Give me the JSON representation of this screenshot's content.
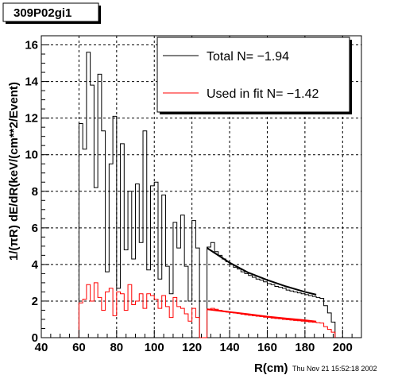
{
  "title_box": {
    "text": "309P02gi1"
  },
  "timestamp": "Thu Nov 21 15:52:18 2002",
  "legend": {
    "entries": [
      {
        "label": "Total N= −1.94",
        "color": "#000000"
      },
      {
        "label": "Used in fit N= −1.42",
        "color": "#ff0000"
      }
    ]
  },
  "chart_data": {
    "type": "line",
    "title": "309P02gi1",
    "xlabel": "R(cm)",
    "ylabel": "1/(πR) dE/dR(keV/(cm**2/Event)",
    "xlim": [
      40,
      210
    ],
    "ylim": [
      0,
      16.5
    ],
    "xticks": [
      40,
      60,
      80,
      100,
      120,
      140,
      160,
      180,
      200
    ],
    "yticks": [
      0,
      2,
      4,
      6,
      8,
      10,
      12,
      14,
      16
    ],
    "grid": true,
    "legend_position": "top-right",
    "series": [
      {
        "name": "Total N= −1.94",
        "color": "#000000",
        "style": "step",
        "bin_edges": [
          60,
          62,
          64,
          66,
          68,
          70,
          72,
          74,
          76,
          78,
          80,
          82,
          84,
          86,
          88,
          90,
          92,
          94,
          96,
          98,
          100,
          102,
          104,
          106,
          108,
          110,
          112,
          114,
          116,
          118,
          120,
          122,
          124,
          126,
          128,
          130,
          132,
          134,
          136,
          138,
          140,
          142,
          144,
          146,
          148,
          150,
          152,
          154,
          156,
          158,
          160,
          162,
          164,
          166,
          168,
          170,
          172,
          174,
          176,
          178,
          180,
          182,
          184,
          186,
          188,
          190,
          192,
          194,
          196
        ],
        "values": [
          11.7,
          10.3,
          15.6,
          13.8,
          8.2,
          14.4,
          11.3,
          3.6,
          9.5,
          12.1,
          2.7,
          10.6,
          4.8,
          8.0,
          4.3,
          8.4,
          5.2,
          11.3,
          3.7,
          8.3,
          8.5,
          3.2,
          7.8,
          3.9,
          2.4,
          6.3,
          4.9,
          6.7,
          3.9,
          2.0,
          6.4,
          4.9,
          0.0,
          0.0,
          4.95,
          5.2,
          4.7,
          4.5,
          4.3,
          4.15,
          4.0,
          3.85,
          3.75,
          3.6,
          3.5,
          3.4,
          3.3,
          3.2,
          3.15,
          3.05,
          2.95,
          2.9,
          2.8,
          2.75,
          2.7,
          2.6,
          2.55,
          2.5,
          2.45,
          2.4,
          2.35,
          2.3,
          2.25,
          2.2,
          2.15,
          1.75,
          1.35,
          0.85
        ]
      },
      {
        "name": "Used in fit N= −1.42",
        "color": "#ff0000",
        "style": "step",
        "bin_edges": [
          60,
          62,
          64,
          66,
          68,
          70,
          72,
          74,
          76,
          78,
          80,
          82,
          84,
          86,
          88,
          90,
          92,
          94,
          96,
          98,
          100,
          102,
          104,
          106,
          108,
          110,
          112,
          114,
          116,
          118,
          120,
          122,
          124,
          126,
          128,
          130,
          132,
          134,
          136,
          138,
          140,
          142,
          144,
          146,
          148,
          150,
          152,
          154,
          156,
          158,
          160,
          162,
          164,
          166,
          168,
          170,
          172,
          174,
          176,
          178,
          180,
          182,
          184,
          186,
          188,
          190,
          192,
          194,
          196
        ],
        "values": [
          1.9,
          2.1,
          2.9,
          2.0,
          3.0,
          2.2,
          1.5,
          2.5,
          2.7,
          1.2,
          2.5,
          2.4,
          1.5,
          2.9,
          1.8,
          2.0,
          2.4,
          1.6,
          2.4,
          2.3,
          2.1,
          1.6,
          2.3,
          1.7,
          1.1,
          2.2,
          1.7,
          1.6,
          1.3,
          0.9,
          1.6,
          1.1,
          0.0,
          0.0,
          1.55,
          1.6,
          1.55,
          1.5,
          1.45,
          1.4,
          1.38,
          1.35,
          1.32,
          1.28,
          1.25,
          1.22,
          1.2,
          1.17,
          1.15,
          1.12,
          1.1,
          1.07,
          1.05,
          1.03,
          1.0,
          0.98,
          0.96,
          0.94,
          0.92,
          0.9,
          0.88,
          0.86,
          0.84,
          0.82,
          0.8,
          0.6,
          0.45,
          0.3
        ]
      },
      {
        "name": "",
        "color": "#000000",
        "style": "line",
        "x": [
          128,
          140,
          150,
          160,
          170,
          180,
          186
        ],
        "y": [
          4.9,
          4.1,
          3.55,
          3.15,
          2.8,
          2.5,
          2.35
        ]
      },
      {
        "name": "",
        "color": "#ff0000",
        "style": "line",
        "x": [
          128,
          140,
          150,
          160,
          170,
          180,
          186
        ],
        "y": [
          1.55,
          1.4,
          1.28,
          1.15,
          1.05,
          0.95,
          0.88
        ]
      }
    ]
  }
}
